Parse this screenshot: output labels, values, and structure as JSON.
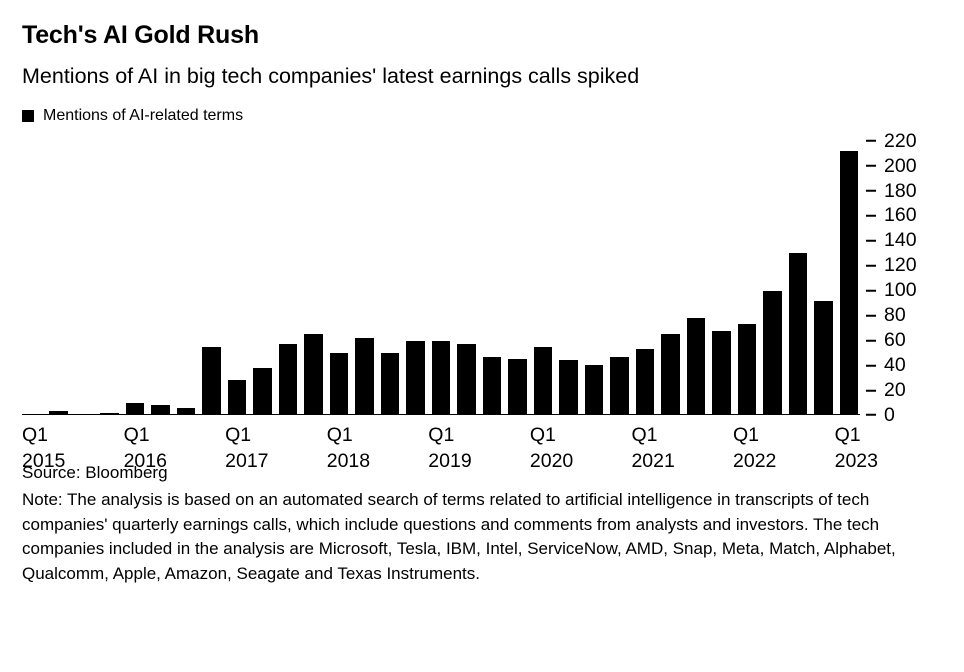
{
  "header": {
    "title": "Tech's AI Gold Rush",
    "subtitle": "Mentions of AI in big tech companies' latest earnings calls spiked"
  },
  "legend": {
    "label": "Mentions of AI-related terms",
    "swatch_color": "#000000"
  },
  "chart_data": {
    "type": "bar",
    "title": "Tech's AI Gold Rush",
    "subtitle": "Mentions of AI in big tech companies' latest earnings calls spiked",
    "series_name": "Mentions of AI-related terms",
    "categories": [
      "Q1 2015",
      "Q2 2015",
      "Q3 2015",
      "Q4 2015",
      "Q1 2016",
      "Q2 2016",
      "Q3 2016",
      "Q4 2016",
      "Q1 2017",
      "Q2 2017",
      "Q3 2017",
      "Q4 2017",
      "Q1 2018",
      "Q2 2018",
      "Q3 2018",
      "Q4 2018",
      "Q1 2019",
      "Q2 2019",
      "Q3 2019",
      "Q4 2019",
      "Q1 2020",
      "Q2 2020",
      "Q3 2020",
      "Q4 2020",
      "Q1 2021",
      "Q2 2021",
      "Q3 2021",
      "Q4 2021",
      "Q1 2022",
      "Q2 2022",
      "Q3 2022",
      "Q4 2022",
      "Q1 2023"
    ],
    "values": [
      1,
      3,
      1,
      2,
      10,
      8,
      6,
      55,
      28,
      38,
      57,
      65,
      50,
      62,
      50,
      60,
      60,
      57,
      47,
      45,
      55,
      44,
      40,
      47,
      53,
      65,
      78,
      68,
      73,
      100,
      130,
      92,
      212
    ],
    "x_ticks": [
      {
        "index": 0,
        "quarter": "Q1",
        "year": "2015"
      },
      {
        "index": 4,
        "quarter": "Q1",
        "year": "2016"
      },
      {
        "index": 8,
        "quarter": "Q1",
        "year": "2017"
      },
      {
        "index": 12,
        "quarter": "Q1",
        "year": "2018"
      },
      {
        "index": 16,
        "quarter": "Q1",
        "year": "2019"
      },
      {
        "index": 20,
        "quarter": "Q1",
        "year": "2020"
      },
      {
        "index": 24,
        "quarter": "Q1",
        "year": "2021"
      },
      {
        "index": 28,
        "quarter": "Q1",
        "year": "2022"
      },
      {
        "index": 32,
        "quarter": "Q1",
        "year": "2023"
      }
    ],
    "y_ticks": [
      0,
      20,
      40,
      60,
      80,
      100,
      120,
      140,
      160,
      180,
      200,
      220
    ],
    "ylim": [
      0,
      220
    ],
    "xlabel": "",
    "ylabel": "",
    "bar_color": "#000000",
    "axis_side": "right",
    "grid": false,
    "legend_position": "top-left"
  },
  "footer": {
    "source": "Source: Bloomberg",
    "note": "Note: The analysis is based on an automated search of terms related to artificial intelligence in transcripts of tech companies' quarterly earnings calls, which include questions and comments from analysts and investors. The tech companies included in the analysis are Microsoft, Tesla, IBM, Intel, ServiceNow, AMD, Snap, Meta, Match, Alphabet, Qualcomm, Apple, Amazon, Seagate and Texas Instruments."
  }
}
